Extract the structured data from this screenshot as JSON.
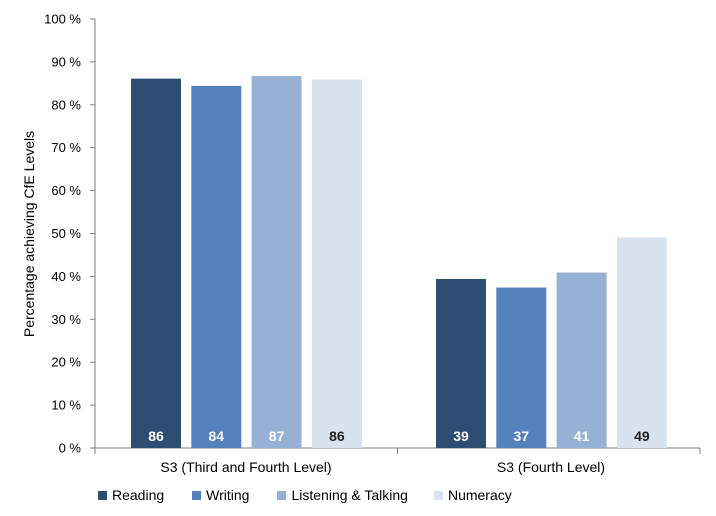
{
  "chart_data": {
    "type": "bar",
    "categories": [
      "S3 (Third and Fourth Level)",
      "S3 (Fourth Level)"
    ],
    "series": [
      {
        "name": "Reading",
        "values": [
          86,
          39
        ],
        "color": "#2e4d75"
      },
      {
        "name": "Writing",
        "values": [
          84,
          37
        ],
        "color": "#5581be"
      },
      {
        "name": "Listening & Talking",
        "values": [
          87,
          41
        ],
        "color": "#97b1d5"
      },
      {
        "name": "Numeracy",
        "values": [
          86,
          49
        ],
        "color": "#d9e2ef"
      }
    ],
    "bar_heights": [
      [
        86.1,
        39.4
      ],
      [
        84.4,
        37.4
      ],
      [
        86.7,
        40.9
      ],
      [
        85.9,
        49.1
      ]
    ],
    "title": "",
    "xlabel": "",
    "ylabel": "Percentage achieving CfE Levels",
    "ylim": [
      0,
      100
    ],
    "yticks": [
      "0 %",
      "10 %",
      "20 %",
      "30 %",
      "40 %",
      "50 %",
      "60 %",
      "70 %",
      "80 %",
      "90 %",
      "100 %"
    ],
    "grid": false,
    "legend_position": "bottom"
  }
}
